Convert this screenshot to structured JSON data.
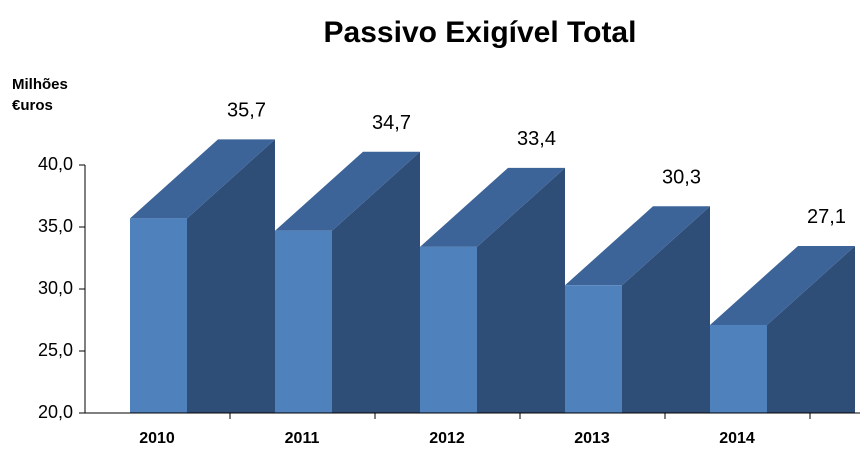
{
  "chart_data": {
    "type": "bar3d",
    "title": "Passivo  Exigível  Total",
    "y_label": [
      "Milhões",
      "€uros"
    ],
    "categories": [
      "2010",
      "2011",
      "2012",
      "2013",
      "2014"
    ],
    "values": [
      35.7,
      34.7,
      33.4,
      30.3,
      27.1
    ],
    "value_labels": [
      "35,7",
      "34,7",
      "33,4",
      "30,3",
      "27,1"
    ],
    "color": "#4f81bd",
    "ylim": [
      20,
      40
    ],
    "yticks": [
      {
        "value": 20,
        "label": "20,0"
      },
      {
        "value": 25,
        "label": "25,0"
      },
      {
        "value": 30,
        "label": "30,0"
      },
      {
        "value": 35,
        "label": "35,0"
      },
      {
        "value": 40,
        "label": "40,0"
      }
    ],
    "grid": false
  }
}
